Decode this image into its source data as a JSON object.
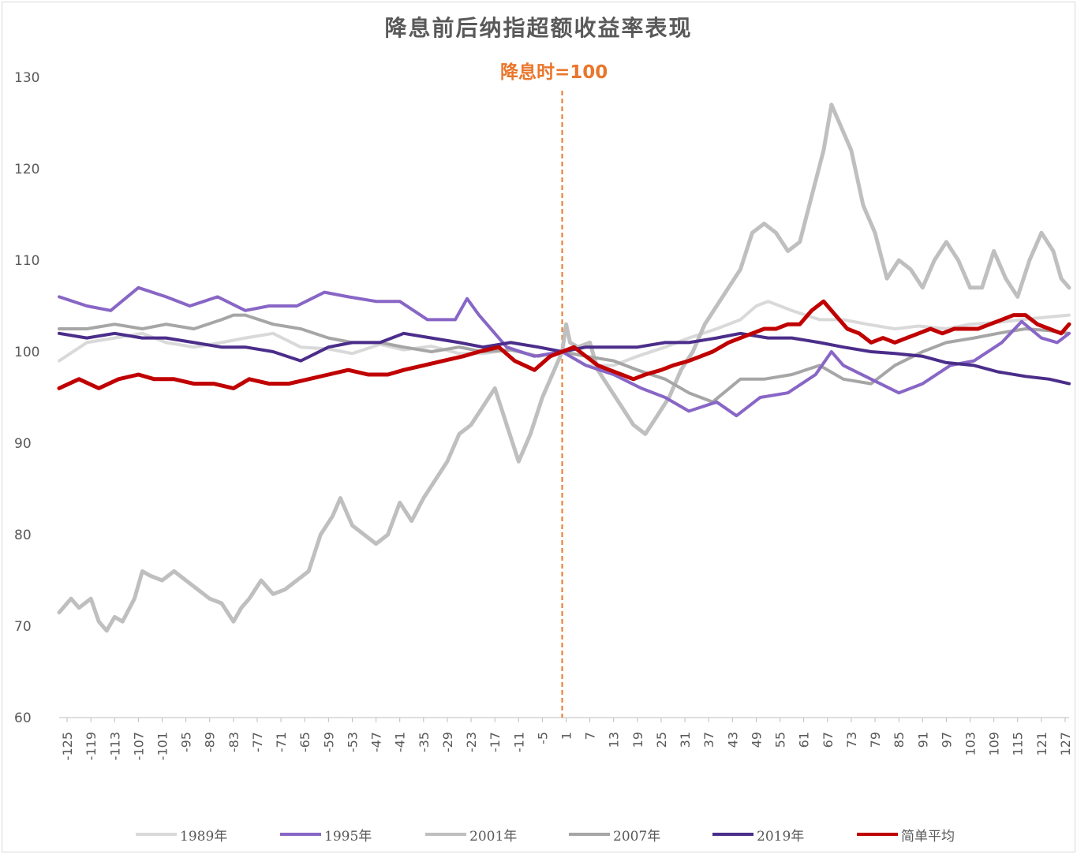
{
  "chart_data": {
    "type": "line",
    "title": "降息前后纳指超额收益率表现",
    "annotation": "降息时=100",
    "xlabel": "",
    "ylabel": "",
    "ylim": [
      60,
      130
    ],
    "yticks": [
      60,
      70,
      80,
      90,
      100,
      110,
      120,
      130
    ],
    "xlim": [
      -127,
      128
    ],
    "xticks": [
      -125,
      -119,
      -113,
      -107,
      -101,
      -95,
      -89,
      -83,
      -77,
      -71,
      -65,
      -59,
      -53,
      -47,
      -41,
      -35,
      -29,
      -23,
      -17,
      -11,
      -5,
      1,
      7,
      13,
      19,
      25,
      31,
      37,
      43,
      49,
      55,
      61,
      67,
      73,
      79,
      85,
      91,
      97,
      103,
      109,
      115,
      121,
      127
    ],
    "event_x": 0,
    "legend_position": "bottom",
    "series": [
      {
        "name": "1989年",
        "color": "#d9d9d9",
        "width": 4,
        "x": [
          -127,
          -120,
          -113,
          -106,
          -100,
          -93,
          -86,
          -80,
          -73,
          -66,
          -59,
          -53,
          -46,
          -40,
          -33,
          -26,
          -20,
          -13,
          -6,
          0,
          6,
          13,
          19,
          26,
          32,
          39,
          45,
          49,
          52,
          58,
          65,
          71,
          77,
          84,
          90,
          97,
          103,
          110,
          116,
          123,
          128
        ],
        "values": [
          99,
          101,
          101.5,
          102,
          101,
          100.5,
          101,
          101.5,
          102,
          100.5,
          100.3,
          99.8,
          100.8,
          100.2,
          100.6,
          99.8,
          99.8,
          100.2,
          99.5,
          100,
          98.5,
          98.5,
          99.5,
          100.5,
          101.5,
          102.5,
          103.5,
          105,
          105.5,
          104.5,
          103.5,
          103.5,
          103,
          102.5,
          102.8,
          102.5,
          103,
          103.2,
          103.5,
          103.8,
          104
        ]
      },
      {
        "name": "1995年",
        "color": "#8866c6",
        "width": 4,
        "x": [
          -127,
          -120,
          -114,
          -107,
          -100,
          -94,
          -87,
          -80,
          -74,
          -67,
          -60,
          -54,
          -47,
          -41,
          -34,
          -27,
          -24,
          -21,
          -14,
          -7,
          0,
          6,
          13,
          20,
          26,
          32,
          39,
          44,
          50,
          57,
          64,
          68,
          71,
          78,
          85,
          91,
          98,
          104,
          111,
          116,
          121,
          125,
          128
        ],
        "values": [
          106,
          105,
          104.5,
          107,
          106,
          105,
          106,
          104.5,
          105,
          105,
          106.5,
          106,
          105.5,
          105.5,
          103.5,
          103.5,
          105.8,
          104,
          100.5,
          99.5,
          100,
          98.5,
          97.5,
          96,
          95,
          93.5,
          94.5,
          93,
          95,
          95.5,
          97.5,
          100,
          98.5,
          97,
          95.5,
          96.5,
          98.5,
          99,
          101,
          103.3,
          101.5,
          101,
          102
        ]
      },
      {
        "name": "2001年",
        "color": "#bfbfbf",
        "width": 5,
        "x": [
          -127,
          -124,
          -122,
          -119,
          -117,
          -115,
          -113,
          -111,
          -108,
          -106,
          -104,
          -101,
          -98,
          -95,
          -92,
          -89,
          -86,
          -83,
          -81,
          -79,
          -76,
          -73,
          -70,
          -67,
          -64,
          -61,
          -58,
          -56,
          -53,
          -50,
          -47,
          -44,
          -41,
          -38,
          -35,
          -32,
          -29,
          -26,
          -23,
          -20,
          -17,
          -14,
          -11,
          -8,
          -5,
          -2,
          0,
          1,
          2,
          4,
          7,
          9,
          12,
          15,
          18,
          21,
          24,
          27,
          30,
          33,
          36,
          39,
          42,
          45,
          48,
          51,
          54,
          57,
          60,
          63,
          66,
          68,
          70,
          73,
          76,
          79,
          82,
          85,
          88,
          91,
          94,
          97,
          100,
          103,
          106,
          109,
          112,
          115,
          118,
          121,
          124,
          126,
          128
        ],
        "values": [
          71.5,
          73,
          72,
          73,
          70.5,
          69.5,
          71,
          70.5,
          73,
          76,
          75.5,
          75,
          76,
          75,
          74,
          73,
          72.5,
          70.5,
          72,
          73,
          75,
          73.5,
          74,
          75,
          76,
          80,
          82,
          84,
          81,
          80,
          79,
          80,
          83.5,
          81.5,
          84,
          86,
          88,
          91,
          92,
          94,
          96,
          92,
          88,
          91,
          95,
          98,
          100,
          103,
          101,
          100.5,
          101,
          98,
          96,
          94,
          92,
          91,
          93,
          95,
          98,
          100,
          103,
          105,
          107,
          109,
          113,
          114,
          113,
          111,
          112,
          117,
          122,
          127,
          125,
          122,
          116,
          113,
          108,
          110,
          109,
          107,
          110,
          112,
          110,
          107,
          107,
          111,
          108,
          106,
          110,
          113,
          111,
          108,
          107
        ]
      },
      {
        "name": "2007年",
        "color": "#a6a6a6",
        "width": 4,
        "x": [
          -127,
          -120,
          -113,
          -106,
          -100,
          -93,
          -86,
          -83,
          -80,
          -73,
          -66,
          -59,
          -53,
          -46,
          -40,
          -33,
          -26,
          -20,
          -13,
          -6,
          0,
          6,
          13,
          19,
          26,
          32,
          38,
          45,
          51,
          58,
          65,
          71,
          78,
          84,
          91,
          97,
          104,
          110,
          117,
          123,
          128
        ],
        "values": [
          102.5,
          102.5,
          103,
          102.5,
          103,
          102.5,
          103.5,
          104,
          104,
          103,
          102.5,
          101.5,
          101,
          101,
          100.5,
          100,
          100.5,
          100,
          100.2,
          99.5,
          100,
          99.5,
          99,
          98,
          97,
          95.5,
          94.5,
          97,
          97,
          97.5,
          98.5,
          97,
          96.5,
          98.5,
          100,
          101,
          101.5,
          102,
          102.5,
          102.3,
          102
        ]
      },
      {
        "name": "2019年",
        "color": "#4b2d8a",
        "width": 4,
        "x": [
          -127,
          -120,
          -113,
          -106,
          -100,
          -93,
          -86,
          -80,
          -73,
          -66,
          -59,
          -53,
          -46,
          -40,
          -33,
          -26,
          -20,
          -13,
          -6,
          0,
          6,
          13,
          19,
          26,
          32,
          39,
          45,
          52,
          58,
          65,
          71,
          78,
          84,
          91,
          97,
          104,
          110,
          117,
          123,
          128
        ],
        "values": [
          102,
          101.5,
          102,
          101.5,
          101.5,
          101,
          100.5,
          100.5,
          100,
          99,
          100.5,
          101,
          101,
          102,
          101.5,
          101,
          100.5,
          101,
          100.5,
          100,
          100.5,
          100.5,
          100.5,
          101,
          101,
          101.5,
          102,
          101.5,
          101.5,
          101,
          100.5,
          100,
          99.8,
          99.5,
          98.8,
          98.5,
          97.8,
          97.3,
          97,
          96.5
        ]
      },
      {
        "name": "简单平均",
        "color": "#c00000",
        "width": 5,
        "x": [
          -127,
          -122,
          -117,
          -112,
          -107,
          -103,
          -98,
          -93,
          -88,
          -83,
          -79,
          -74,
          -69,
          -64,
          -59,
          -54,
          -49,
          -44,
          -40,
          -35,
          -30,
          -25,
          -21,
          -16,
          -12,
          -7,
          -3,
          0,
          3,
          6,
          9,
          12,
          15,
          18,
          21,
          25,
          28,
          32,
          35,
          38,
          42,
          45,
          48,
          51,
          54,
          57,
          60,
          63,
          66,
          69,
          72,
          75,
          78,
          81,
          84,
          87,
          90,
          93,
          96,
          99,
          102,
          105,
          108,
          111,
          114,
          117,
          120,
          123,
          126,
          128
        ],
        "values": [
          96,
          97,
          96,
          97,
          97.5,
          97,
          97,
          96.5,
          96.5,
          96,
          97,
          96.5,
          96.5,
          97,
          97.5,
          98,
          97.5,
          97.5,
          98,
          98.5,
          99,
          99.5,
          100,
          100.5,
          99,
          98,
          99.5,
          100,
          100.5,
          99.5,
          98.5,
          98,
          97.5,
          97,
          97.5,
          98,
          98.5,
          99,
          99.5,
          100,
          101,
          101.5,
          102,
          102.5,
          102.5,
          103,
          103,
          104.5,
          105.5,
          104,
          102.5,
          102,
          101,
          101.5,
          101,
          101.5,
          102,
          102.5,
          102,
          102.5,
          102.5,
          102.5,
          103,
          103.5,
          104,
          104,
          103,
          102.5,
          102,
          103
        ]
      }
    ]
  }
}
